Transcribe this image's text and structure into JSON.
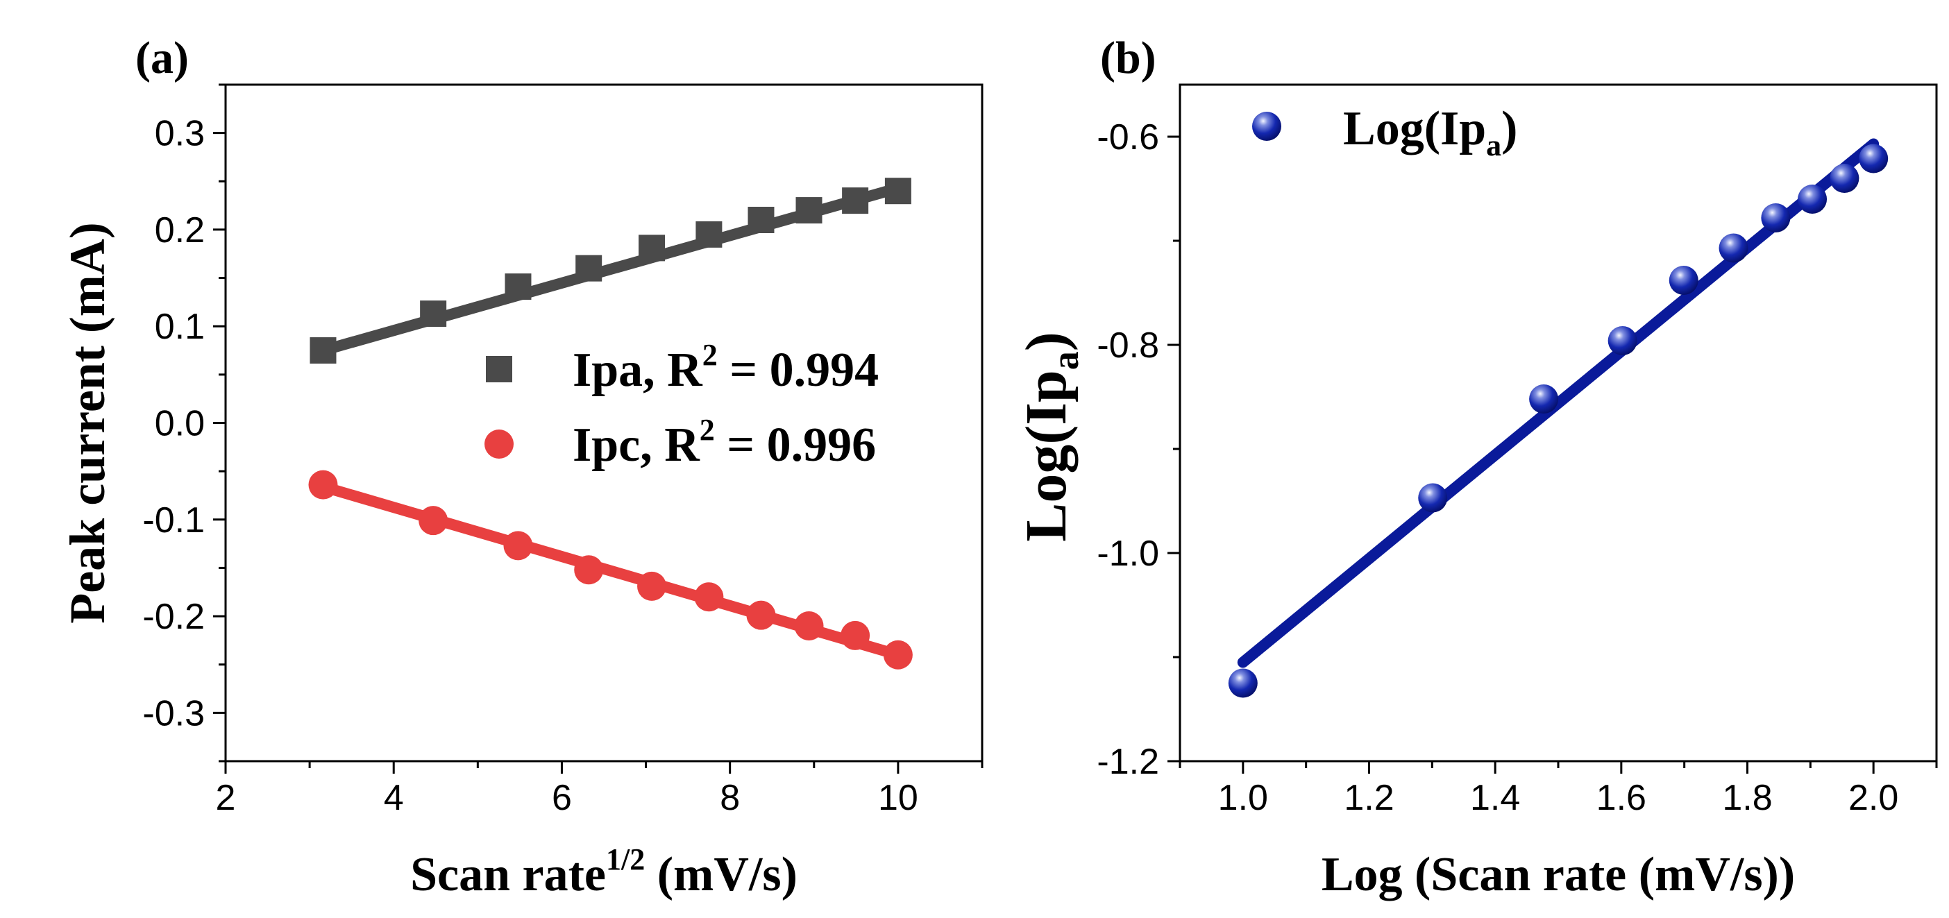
{
  "chart_data": [
    {
      "panel_label": "(a)",
      "type": "scatter",
      "xlabel": "Scan rate",
      "xlabel_sup": "1/2",
      "xlabel_unit": "(mV/s)",
      "ylabel": "Peak current (mA)",
      "xlim": [
        2,
        11
      ],
      "ylim": [
        -0.35,
        0.35
      ],
      "xticks": [
        2,
        4,
        6,
        8,
        10
      ],
      "xtick_labels": [
        "2",
        "4",
        "6",
        "8",
        "10"
      ],
      "yticks": [
        -0.3,
        -0.2,
        -0.1,
        0.0,
        0.1,
        0.2,
        0.3
      ],
      "ytick_labels": [
        "-0.3",
        "-0.2",
        "-0.1",
        "0.0",
        "0.1",
        "0.2",
        "0.3"
      ],
      "legend_position": "center-right",
      "series": [
        {
          "name": "Ipa",
          "legend_prefix": "Ipa, R",
          "legend_sup": "2",
          "legend_suffix": " = 0.994",
          "marker": "square",
          "color": "#4a4a4a",
          "x": [
            3.16,
            4.47,
            5.48,
            6.32,
            7.07,
            7.75,
            8.37,
            8.94,
            9.49,
            10.0
          ],
          "y": [
            0.075,
            0.113,
            0.141,
            0.16,
            0.181,
            0.195,
            0.21,
            0.22,
            0.23,
            0.24
          ],
          "fit": {
            "x": [
              3.16,
              10.0
            ],
            "y": [
              0.075,
              0.243
            ]
          }
        },
        {
          "name": "Ipc",
          "legend_prefix": "Ipc, R",
          "legend_sup": "2",
          "legend_suffix": " = 0.996",
          "marker": "circle",
          "color": "#e84040",
          "x": [
            3.16,
            4.47,
            5.48,
            6.32,
            7.07,
            7.75,
            8.37,
            8.94,
            9.49,
            10.0
          ],
          "y": [
            -0.064,
            -0.101,
            -0.127,
            -0.152,
            -0.169,
            -0.18,
            -0.199,
            -0.21,
            -0.22,
            -0.24
          ],
          "fit": {
            "x": [
              3.16,
              10.0
            ],
            "y": [
              -0.066,
              -0.24
            ]
          }
        }
      ]
    },
    {
      "panel_label": "(b)",
      "type": "scatter",
      "xlabel": "Log (Scan rate (mV/s))",
      "ylabel": "Log(Ip",
      "ylabel_sub": "a",
      "ylabel_close": ")",
      "xlim": [
        0.9,
        2.1
      ],
      "ylim": [
        -1.2,
        -0.55
      ],
      "xticks": [
        1.0,
        1.2,
        1.4,
        1.6,
        1.8,
        2.0
      ],
      "xtick_labels": [
        "1.0",
        "1.2",
        "1.4",
        "1.6",
        "1.8",
        "2.0"
      ],
      "yticks": [
        -1.2,
        -1.0,
        -0.8,
        -0.6
      ],
      "ytick_labels": [
        "-1.2",
        "-1.0",
        "-0.8",
        "-0.6"
      ],
      "legend_position": "top-left",
      "series": [
        {
          "name": "Log(Ipa)",
          "legend_prefix": "Log(Ip",
          "legend_sub": "a",
          "legend_suffix": ")",
          "marker": "sphere",
          "color": "#0a1a9a",
          "x": [
            1.0,
            1.301,
            1.477,
            1.602,
            1.699,
            1.778,
            1.845,
            1.903,
            1.954,
            2.0
          ],
          "y": [
            -1.125,
            -0.947,
            -0.852,
            -0.796,
            -0.738,
            -0.707,
            -0.678,
            -0.66,
            -0.64,
            -0.621
          ],
          "fit": {
            "x": [
              1.0,
              2.0
            ],
            "y": [
              -1.105,
              -0.607
            ]
          }
        }
      ]
    }
  ]
}
